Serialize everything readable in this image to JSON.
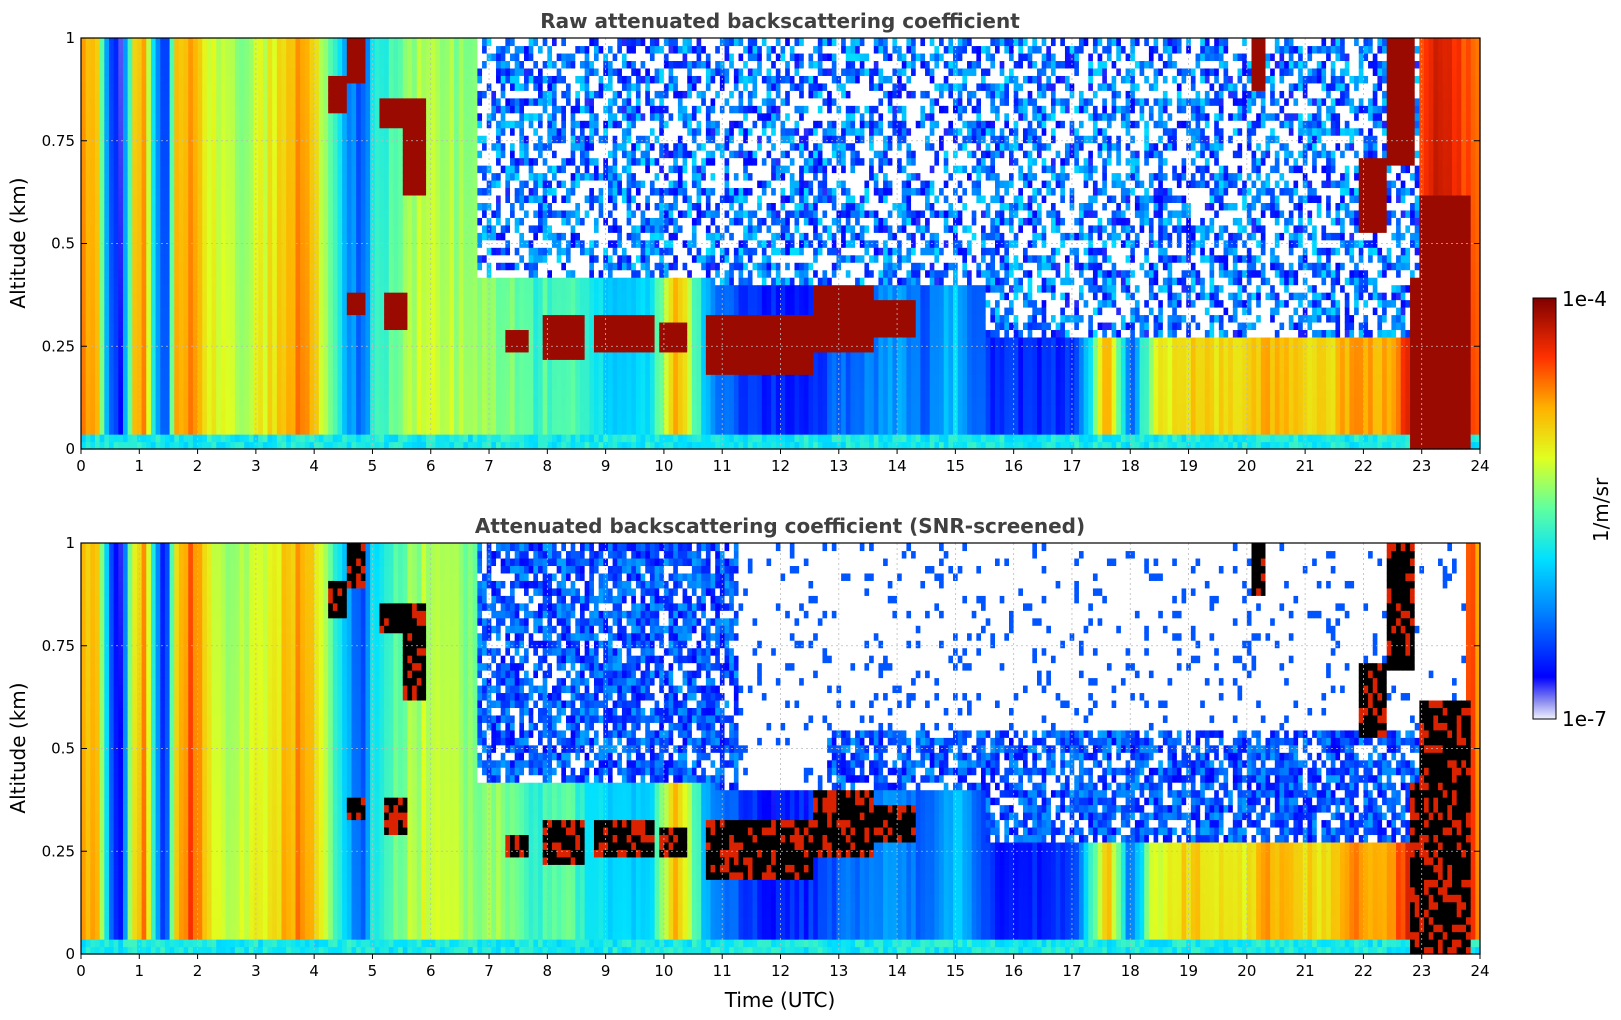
{
  "chart_data": [
    {
      "type": "heatmap",
      "title": "Raw attenuated backscattering coefficient",
      "xlabel": "",
      "ylabel": "Altitude (km)",
      "xlim": [
        0,
        24
      ],
      "ylim": [
        0,
        1
      ],
      "xticks": [
        "0",
        "1",
        "2",
        "3",
        "4",
        "5",
        "6",
        "7",
        "8",
        "9",
        "10",
        "11",
        "12",
        "13",
        "14",
        "15",
        "16",
        "17",
        "18",
        "19",
        "20",
        "21",
        "22",
        "23",
        "24"
      ],
      "yticks": [
        "0",
        "0.25",
        "0.5",
        "0.75",
        "1"
      ],
      "grid": true,
      "screened": false
    },
    {
      "type": "heatmap",
      "title": "Attenuated backscattering coefficient (SNR-screened)",
      "xlabel": "Time (UTC)",
      "ylabel": "Altitude (km)",
      "xlim": [
        0,
        24
      ],
      "ylim": [
        0,
        1
      ],
      "xticks": [
        "0",
        "1",
        "2",
        "3",
        "4",
        "5",
        "6",
        "7",
        "8",
        "9",
        "10",
        "11",
        "12",
        "13",
        "14",
        "15",
        "16",
        "17",
        "18",
        "19",
        "20",
        "21",
        "22",
        "23",
        "24"
      ],
      "yticks": [
        "0",
        "0.25",
        "0.5",
        "0.75",
        "1"
      ],
      "grid": true,
      "screened": true
    }
  ],
  "colorbar": {
    "label": "1/m/sr",
    "max_label": "1e-4",
    "min_label": "1e-7",
    "scale": "log",
    "colormap": "jet"
  },
  "profile": {
    "column_levels": [
      [
        0.0,
        0.78
      ],
      [
        0.3,
        0.72
      ],
      [
        0.5,
        0.22
      ],
      [
        0.7,
        0.12
      ],
      [
        0.9,
        0.7
      ],
      [
        1.1,
        0.78
      ],
      [
        1.3,
        0.3
      ],
      [
        1.45,
        0.14
      ],
      [
        1.6,
        0.7
      ],
      [
        1.9,
        0.84
      ],
      [
        2.2,
        0.66
      ],
      [
        2.6,
        0.58
      ],
      [
        3.0,
        0.62
      ],
      [
        3.4,
        0.7
      ],
      [
        3.8,
        0.8
      ],
      [
        4.1,
        0.66
      ],
      [
        4.5,
        0.38
      ],
      [
        4.8,
        0.2
      ],
      [
        5.0,
        0.42
      ],
      [
        5.5,
        0.55
      ],
      [
        6.0,
        0.62
      ],
      [
        6.6,
        0.56
      ],
      [
        7.2,
        0.55
      ],
      [
        7.8,
        0.47
      ],
      [
        8.3,
        0.5
      ],
      [
        8.8,
        0.4
      ],
      [
        9.3,
        0.36
      ],
      [
        9.8,
        0.4
      ],
      [
        10.2,
        0.78
      ],
      [
        10.5,
        0.54
      ],
      [
        10.8,
        0.26
      ],
      [
        11.2,
        0.2
      ],
      [
        11.8,
        0.14
      ],
      [
        12.5,
        0.15
      ],
      [
        13.0,
        0.22
      ],
      [
        13.5,
        0.26
      ],
      [
        14.0,
        0.3
      ],
      [
        14.5,
        0.22
      ],
      [
        15.0,
        0.36
      ],
      [
        15.3,
        0.24
      ],
      [
        15.6,
        0.16
      ],
      [
        16.2,
        0.14
      ],
      [
        17.0,
        0.16
      ],
      [
        17.4,
        0.5
      ],
      [
        17.6,
        0.78
      ],
      [
        18.0,
        0.22
      ],
      [
        18.4,
        0.62
      ],
      [
        19.0,
        0.7
      ],
      [
        19.5,
        0.68
      ],
      [
        20.0,
        0.66
      ],
      [
        20.3,
        0.76
      ],
      [
        20.8,
        0.7
      ],
      [
        21.4,
        0.66
      ],
      [
        21.8,
        0.78
      ],
      [
        22.3,
        0.72
      ],
      [
        22.8,
        0.88
      ],
      [
        23.3,
        0.92
      ],
      [
        23.8,
        0.86
      ],
      [
        24.0,
        0.8
      ]
    ],
    "cloud_layers": [
      {
        "t0": 4.2,
        "t1": 4.6,
        "alt0": 0.82,
        "alt1": 0.9
      },
      {
        "t0": 4.6,
        "t1": 4.9,
        "alt0": 0.9,
        "alt1": 1.0
      },
      {
        "t0": 5.1,
        "t1": 5.9,
        "alt0": 0.78,
        "alt1": 0.86
      },
      {
        "t0": 5.5,
        "t1": 5.9,
        "alt0": 0.62,
        "alt1": 0.78
      },
      {
        "t0": 4.6,
        "t1": 4.9,
        "alt0": 0.32,
        "alt1": 0.38
      },
      {
        "t0": 5.2,
        "t1": 5.6,
        "alt0": 0.3,
        "alt1": 0.38
      },
      {
        "t0": 7.3,
        "t1": 7.7,
        "alt0": 0.24,
        "alt1": 0.29
      },
      {
        "t0": 7.9,
        "t1": 8.6,
        "alt0": 0.22,
        "alt1": 0.33
      },
      {
        "t0": 8.8,
        "t1": 9.8,
        "alt0": 0.24,
        "alt1": 0.33
      },
      {
        "t0": 9.9,
        "t1": 10.4,
        "alt0": 0.24,
        "alt1": 0.3
      },
      {
        "t0": 10.7,
        "t1": 12.6,
        "alt0": 0.19,
        "alt1": 0.32
      },
      {
        "t0": 12.6,
        "t1": 13.6,
        "alt0": 0.24,
        "alt1": 0.4
      },
      {
        "t0": 13.6,
        "t1": 14.3,
        "alt0": 0.27,
        "alt1": 0.36
      },
      {
        "t0": 20.1,
        "t1": 20.3,
        "alt0": 0.88,
        "alt1": 1.0
      },
      {
        "t0": 21.9,
        "t1": 22.4,
        "alt0": 0.52,
        "alt1": 0.7
      },
      {
        "t0": 22.4,
        "t1": 22.9,
        "alt0": 0.7,
        "alt1": 1.0
      },
      {
        "t0": 22.8,
        "t1": 23.8,
        "alt0": 0.0,
        "alt1": 0.42
      },
      {
        "t0": 23.0,
        "t1": 23.8,
        "alt0": 0.42,
        "alt1": 0.62
      }
    ],
    "noise_region": [
      [
        6.8,
        0.42,
        1.0
      ],
      [
        10.9,
        0.4,
        1.0
      ],
      [
        15.5,
        0.28,
        1.0
      ],
      [
        23.0,
        0.6,
        1.0
      ]
    ],
    "clear_region": [
      [
        11.3,
        0.4,
        1.0
      ],
      [
        12.8,
        0.55,
        1.0
      ],
      [
        23.8,
        0.0,
        1.0
      ]
    ]
  }
}
